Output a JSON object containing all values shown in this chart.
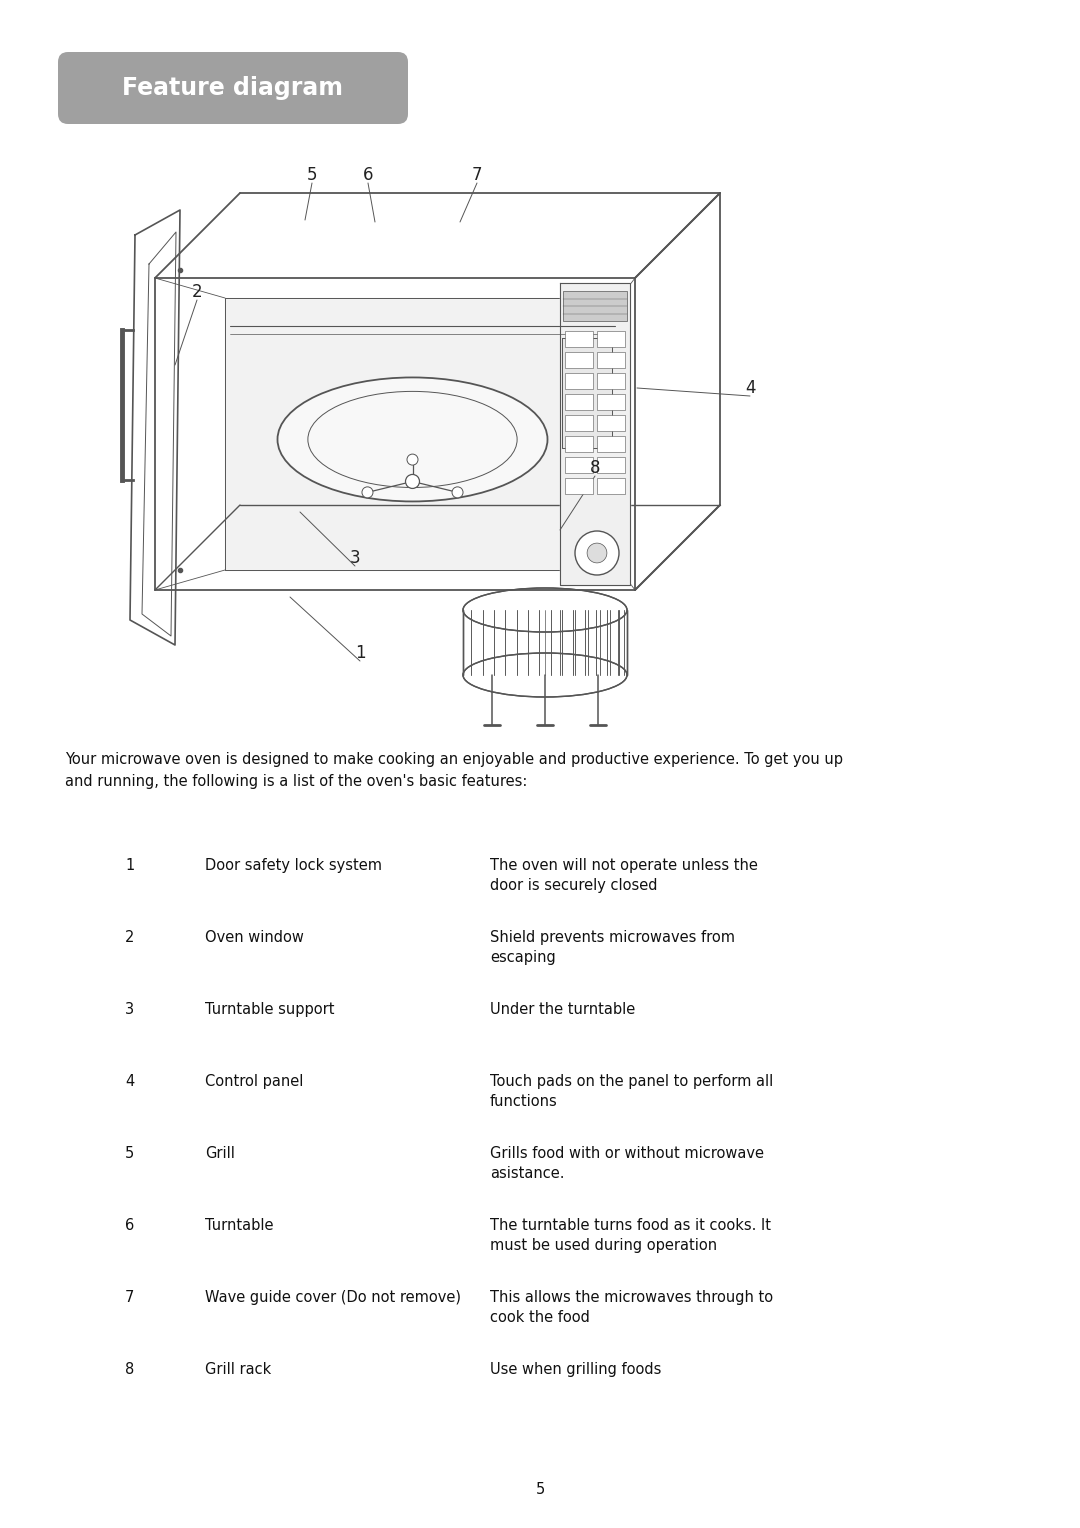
{
  "title": "Feature diagram",
  "title_bg_color": "#a0a0a0",
  "title_text_color": "#ffffff",
  "page_bg_color": "#ffffff",
  "intro_text": "Your microwave oven is designed to make cooking an enjoyable and productive experience. To get you up\nand running, the following is a list of the oven's basic features:",
  "features": [
    {
      "num": "1",
      "name": "Door safety lock system",
      "desc": "The oven will not operate unless the\ndoor is securely closed"
    },
    {
      "num": "2",
      "name": "Oven window",
      "desc": "Shield prevents microwaves from\nescaping"
    },
    {
      "num": "3",
      "name": "Turntable support",
      "desc": "Under the turntable"
    },
    {
      "num": "4",
      "name": "Control panel",
      "desc": "Touch pads on the panel to perform all\nfunctions"
    },
    {
      "num": "5",
      "name": "Grill",
      "desc": "Grills food with or without microwave\nasistance."
    },
    {
      "num": "6",
      "name": "Turntable",
      "desc": "The turntable turns food as it cooks. It\nmust be used during operation"
    },
    {
      "num": "7",
      "name": "Wave guide cover (Do not remove)",
      "desc": "This allows the microwaves through to\ncook the food"
    },
    {
      "num": "8",
      "name": "Grill rack",
      "desc": "Use when grilling foods"
    }
  ],
  "page_number": "5",
  "line_color": "#555555"
}
